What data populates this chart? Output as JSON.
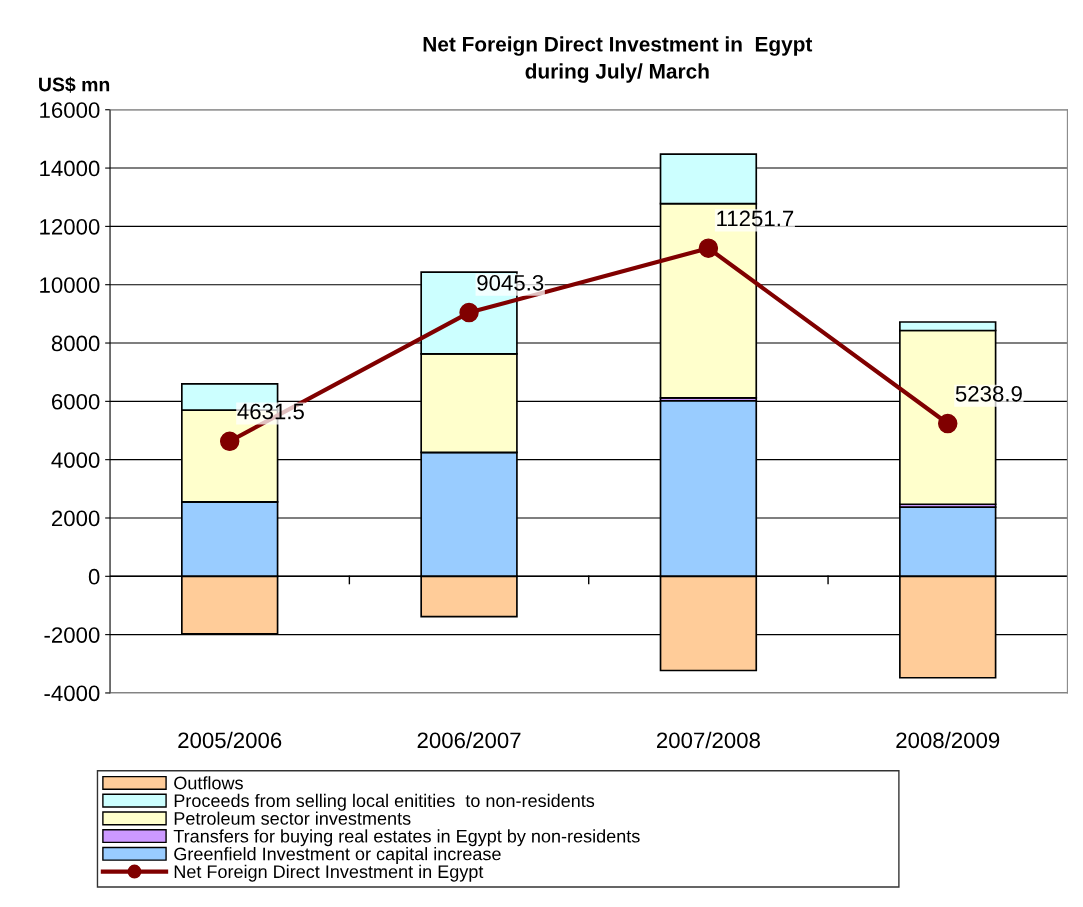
{
  "chart_data": {
    "type": "bar",
    "stacked": true,
    "title": "Net Foreign Direct Investment in  Egypt\nduring July/ March",
    "ylabel": "US$ mn",
    "categories": [
      "2005/2006",
      "2006/2007",
      "2007/2008",
      "2008/2009"
    ],
    "series": [
      {
        "name": "Greenfield Investment or capital increase",
        "color": "#99ccff",
        "values": [
          2550,
          4250,
          6020,
          2370
        ]
      },
      {
        "name": "Transfers for buying real estates in Egypt by non-residents",
        "color": "#cc99ff",
        "values": [
          0,
          0,
          100,
          100
        ]
      },
      {
        "name": "Petroleum sector investments",
        "color": "#ffffcc",
        "values": [
          3150,
          3380,
          6660,
          5960
        ]
      },
      {
        "name": "Proceeds from selling local enitities  to non-residents",
        "color": "#ccffff",
        "values": [
          900,
          2800,
          1700,
          290
        ]
      },
      {
        "name": "Outflows",
        "color": "#ffcc99",
        "values": [
          -1970,
          -1380,
          -3230,
          -3480
        ]
      },
      {
        "name": "Net Foreign Direct Investment in Egypt",
        "type": "line",
        "color": "#800000",
        "marker": "circle",
        "values": [
          4631.5,
          9045.3,
          11251.7,
          5238.9
        ],
        "value_labels": [
          "4631.5",
          "9045.3",
          "11251.7",
          "5238.9"
        ]
      }
    ],
    "ylim": [
      -4000,
      16000
    ],
    "yticks": [
      -4000,
      -2000,
      0,
      2000,
      4000,
      6000,
      8000,
      10000,
      12000,
      14000,
      16000
    ],
    "grid": "y",
    "legend": "bottom"
  }
}
